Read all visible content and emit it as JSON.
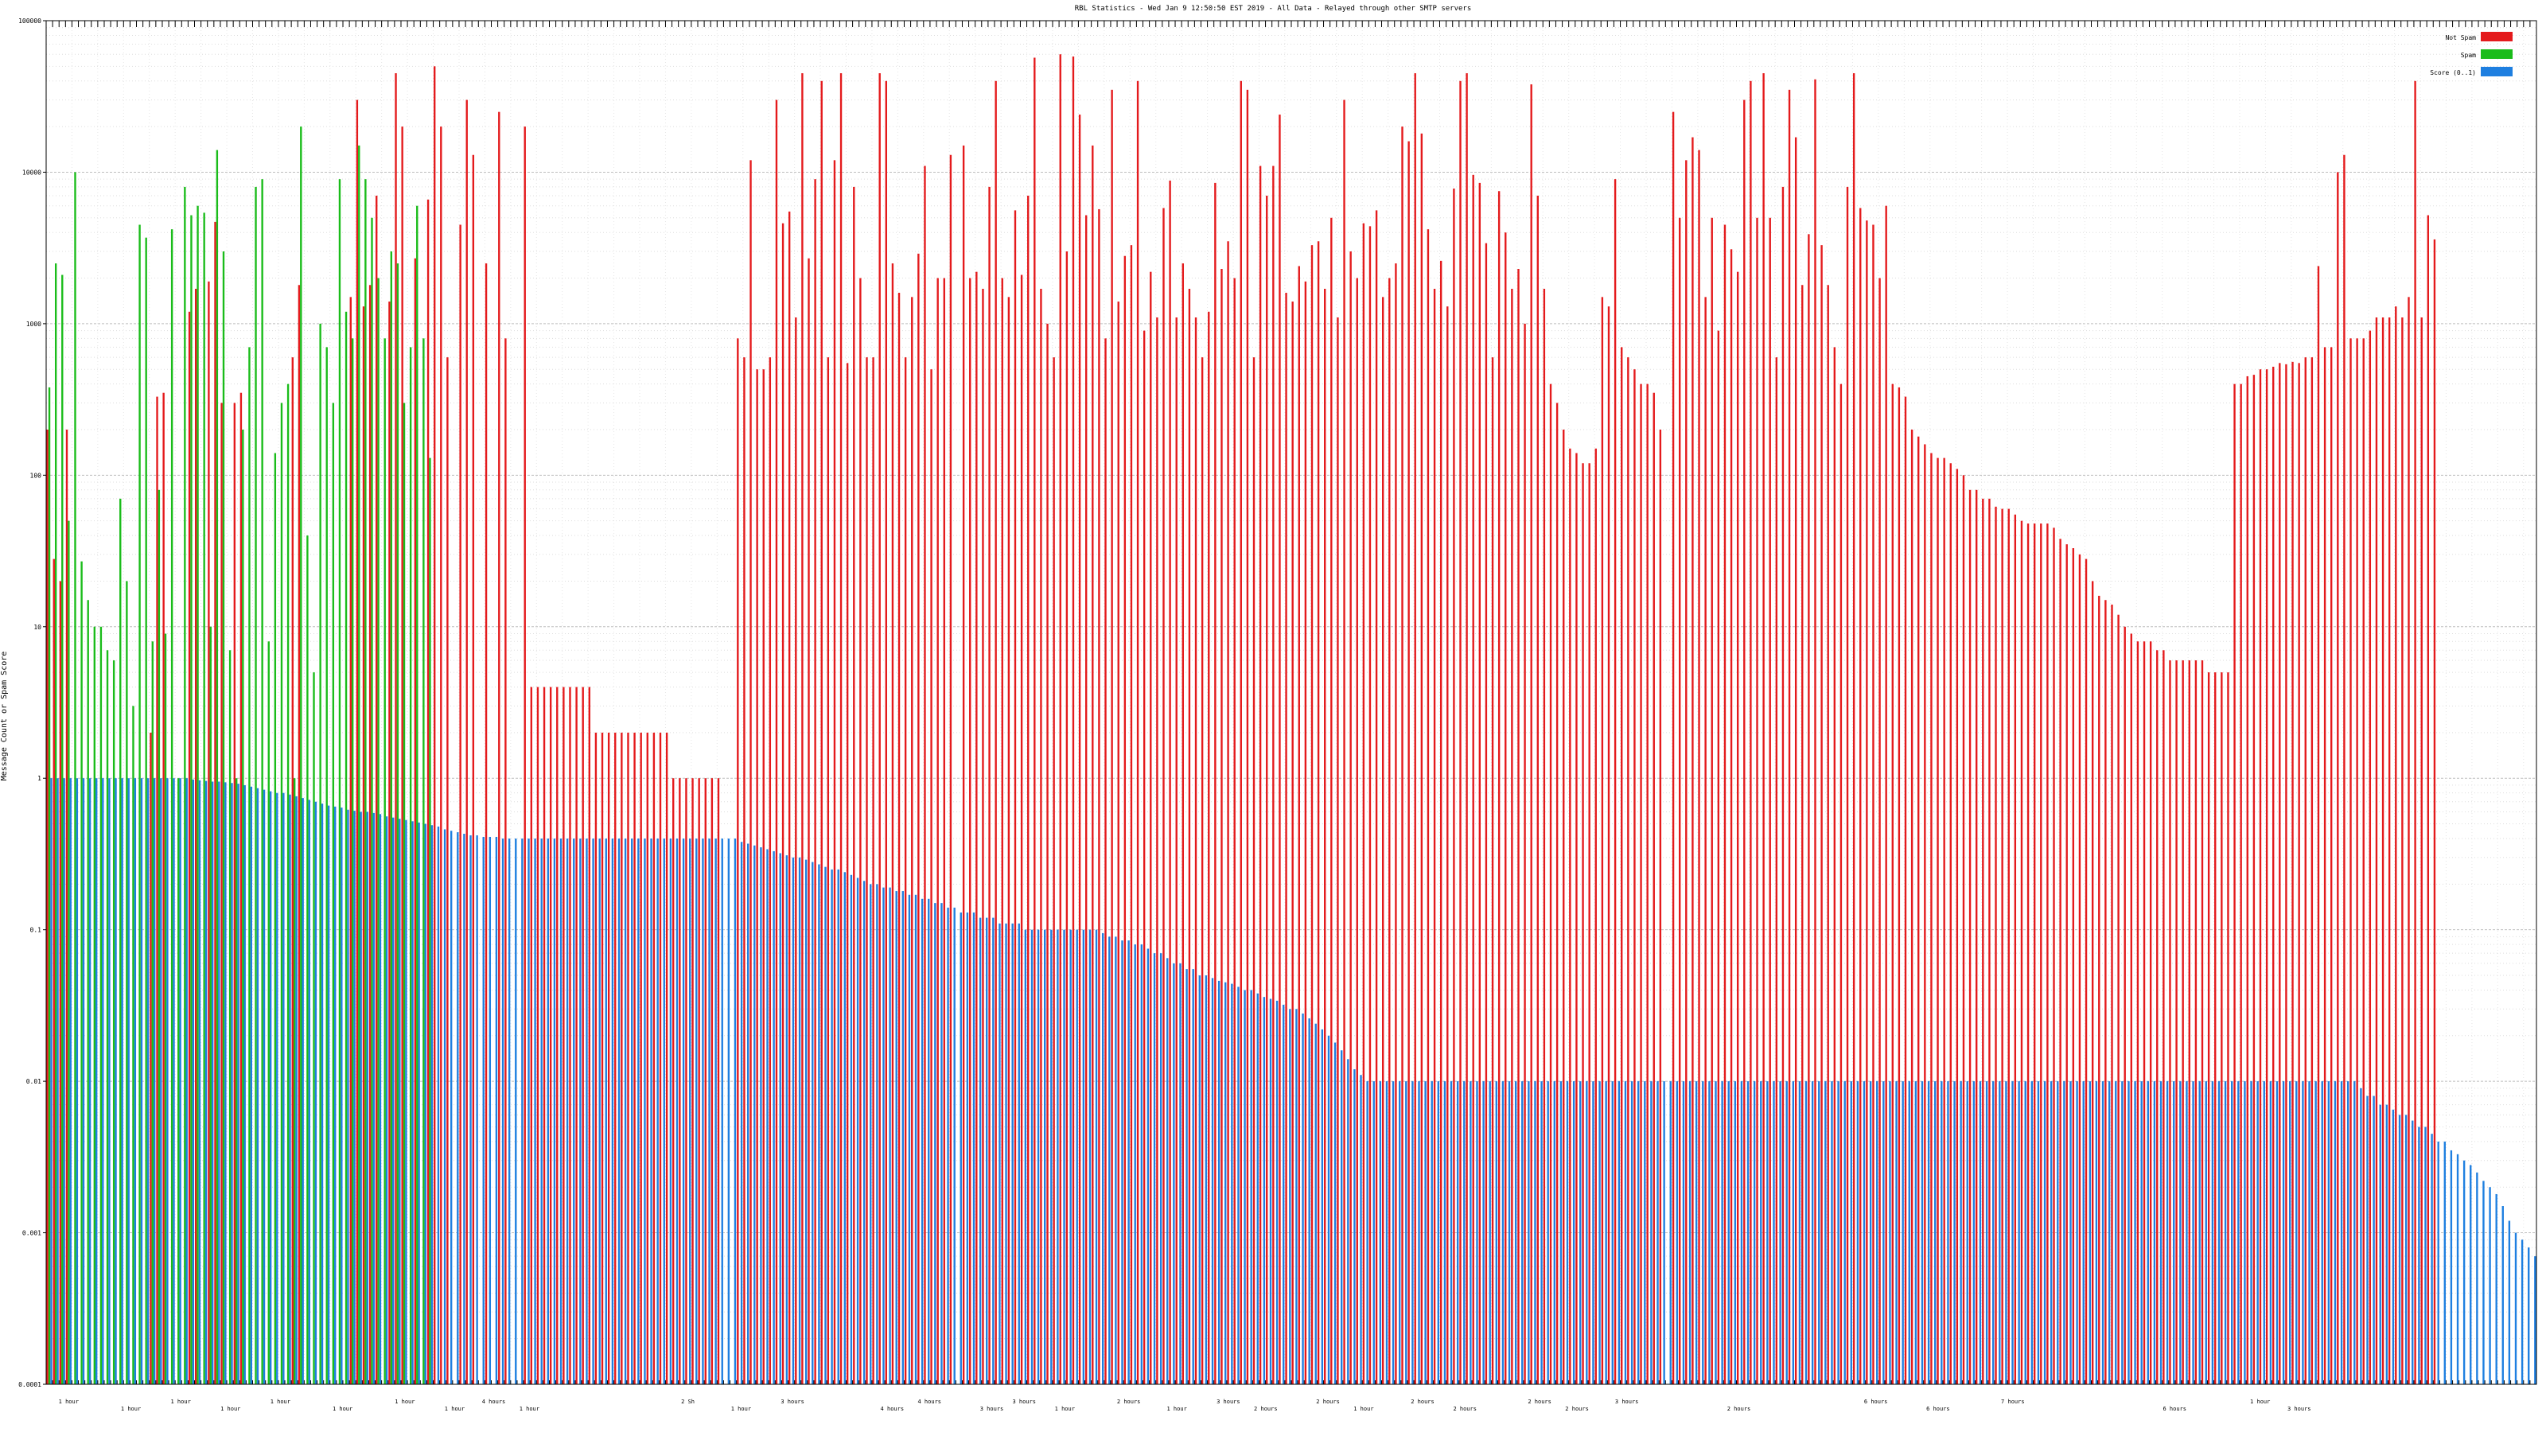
{
  "chart_data": {
    "type": "bar",
    "title": "RBL Statistics - Wed Jan  9 12:50:50 EST 2019 - All Data - Relayed through other SMTP servers",
    "ylabel": "Message Count or Spam Score",
    "scale": "log",
    "ylim": [
      0.0001,
      100000
    ],
    "y_ticks": [
      {
        "value": 0.0001,
        "label": "0.0001"
      },
      {
        "value": 0.001,
        "label": "0.001"
      },
      {
        "value": 0.01,
        "label": "0.01"
      },
      {
        "value": 0.1,
        "label": "0.1"
      },
      {
        "value": 1,
        "label": "1"
      },
      {
        "value": 10,
        "label": "10"
      },
      {
        "value": 100,
        "label": "100"
      },
      {
        "value": 1000,
        "label": "1000"
      },
      {
        "value": 10000,
        "label": "10000"
      },
      {
        "value": 100000,
        "label": "100000"
      }
    ],
    "grid": true,
    "legend_position": "top-right",
    "series": [
      {
        "name": "Not Spam",
        "color": "#e41a1c"
      },
      {
        "name": "Spam",
        "color": "#1abc1a"
      },
      {
        "name": "Score (0..1)",
        "color": "#1e7fe0"
      }
    ],
    "x_groups": [
      {
        "label": "1 hour",
        "frac": 0.005
      },
      {
        "label": "1 hour",
        "frac": 0.03
      },
      {
        "label": "1 hour",
        "frac": 0.05
      },
      {
        "label": "1 hour",
        "frac": 0.07
      },
      {
        "label": "1 hour",
        "frac": 0.09
      },
      {
        "label": "1 hour",
        "frac": 0.115
      },
      {
        "label": "1 hour",
        "frac": 0.14
      },
      {
        "label": "1 hour",
        "frac": 0.16
      },
      {
        "label": "4 hours",
        "frac": 0.175
      },
      {
        "label": "1 hour",
        "frac": 0.19
      },
      {
        "label": "2 Sh",
        "frac": 0.255
      },
      {
        "label": "1 hour",
        "frac": 0.275
      },
      {
        "label": "3 hours",
        "frac": 0.295
      },
      {
        "label": "4 hours",
        "frac": 0.335
      },
      {
        "label": "4 hours",
        "frac": 0.35
      },
      {
        "label": "3 hours",
        "frac": 0.375
      },
      {
        "label": "3 hours",
        "frac": 0.388
      },
      {
        "label": "1 hour",
        "frac": 0.405
      },
      {
        "label": "2 hours",
        "frac": 0.43
      },
      {
        "label": "1 hour",
        "frac": 0.45
      },
      {
        "label": "3 hours",
        "frac": 0.47
      },
      {
        "label": "2 hours",
        "frac": 0.485
      },
      {
        "label": "2 hours",
        "frac": 0.51
      },
      {
        "label": "1 hour",
        "frac": 0.525
      },
      {
        "label": "2 hours",
        "frac": 0.548
      },
      {
        "label": "2 hours",
        "frac": 0.565
      },
      {
        "label": "2 hours",
        "frac": 0.595
      },
      {
        "label": "2 hours",
        "frac": 0.61
      },
      {
        "label": "3 hours",
        "frac": 0.63
      },
      {
        "label": "2 hours",
        "frac": 0.675
      },
      {
        "label": "6 hours",
        "frac": 0.73
      },
      {
        "label": "6 hours",
        "frac": 0.755
      },
      {
        "label": "7 hours",
        "frac": 0.785
      },
      {
        "label": "6 hours",
        "frac": 0.85
      },
      {
        "label": "1 hour",
        "frac": 0.885
      },
      {
        "label": "3 hours",
        "frac": 0.9
      }
    ],
    "not_spam": [
      200,
      28,
      20,
      200,
      0,
      0,
      0,
      0,
      0,
      0,
      0,
      0,
      0,
      0,
      0,
      0,
      2,
      330,
      350,
      0,
      0,
      0,
      1200,
      1700,
      0,
      1900,
      4700,
      300,
      0,
      300,
      350,
      0,
      0,
      0,
      0,
      0,
      0,
      0,
      600,
      1800,
      0,
      0,
      0,
      0,
      0,
      0,
      0,
      1500,
      30000,
      1300,
      1800,
      7000,
      0,
      1400,
      45000,
      20000,
      0,
      2700,
      0,
      6600,
      50000,
      20000,
      600,
      0,
      4500,
      30000,
      13000,
      0,
      2500,
      0,
      25000,
      800,
      0,
      0,
      20000,
      4,
      4,
      4,
      4,
      4,
      4,
      4,
      4,
      4,
      4,
      2,
      2,
      2,
      2,
      2,
      2,
      2,
      2,
      2,
      2,
      2,
      2,
      1,
      1,
      1,
      1,
      1,
      1,
      1,
      1,
      0,
      0,
      800,
      600,
      12000,
      500,
      500,
      600,
      30000,
      4600,
      5500,
      1100,
      45000,
      2700,
      9000,
      40000,
      600,
      12000,
      45000,
      550,
      8000,
      2000,
      600,
      600,
      45000,
      40000,
      2500,
      1600,
      600,
      1500,
      2900,
      11000,
      500,
      2000,
      2000,
      13000,
      0,
      15000,
      2000,
      2200,
      1700,
      8000,
      40000,
      2000,
      1500,
      5600,
      2100,
      7000,
      57000,
      1700,
      1000,
      600,
      60000,
      3000,
      58000,
      24000,
      5200,
      15000,
      5700,
      800,
      35000,
      1400,
      2800,
      3300,
      40000,
      900,
      2200,
      1100,
      5800,
      8800,
      1100,
      2500,
      1700,
      1100,
      600,
      1200,
      8500,
      2300,
      3500,
      2000,
      40000,
      35000,
      600,
      11000,
      7000,
      11000,
      24000,
      1600,
      1400,
      2400,
      1900,
      3300,
      3500,
      1700,
      5000,
      1100,
      30000,
      3000,
      2000,
      4600,
      4400,
      5600,
      1500,
      2000,
      2500,
      20000,
      16000,
      45000,
      18000,
      4200,
      1700,
      2600,
      1300,
      7800,
      40000,
      45000,
      9600,
      8500,
      3400,
      600,
      7500,
      4000,
      1700,
      2300,
      1000,
      38000,
      7000,
      1700,
      400,
      300,
      200,
      150,
      140,
      120,
      120,
      150,
      1500,
      1300,
      9000,
      700,
      600,
      500,
      400,
      400,
      350,
      200,
      0,
      25000,
      5000,
      12000,
      17000,
      14000,
      1500,
      5000,
      900,
      4500,
      3100,
      2200,
      30000,
      40000,
      5000,
      45000,
      5000,
      600,
      8000,
      35000,
      17000,
      1800,
      3900,
      41000,
      3300,
      1800,
      700,
      400,
      8000,
      45000,
      5800,
      4800,
      4500,
      2000,
      6000,
      400,
      380,
      330,
      200,
      180,
      160,
      140,
      130,
      130,
      120,
      110,
      100,
      80,
      80,
      70,
      70,
      62,
      60,
      60,
      55,
      50,
      48,
      48,
      48,
      48,
      45,
      38,
      35,
      33,
      30,
      28,
      20,
      16,
      15,
      14,
      12,
      10,
      9,
      8,
      8,
      8,
      7,
      7,
      6,
      6,
      6,
      6,
      6,
      6,
      5,
      5,
      5,
      5,
      400,
      400,
      450,
      460,
      500,
      500,
      520,
      550,
      540,
      560,
      550,
      600,
      600,
      2400,
      700,
      700,
      10000,
      13000,
      800,
      800,
      800,
      900,
      1100,
      1100,
      1100,
      1300,
      1100,
      1500,
      40000,
      1100,
      5200,
      3600
    ],
    "spam": [
      380,
      2500,
      2100,
      50,
      10000,
      27,
      15,
      10,
      10,
      7,
      6,
      70,
      20,
      3,
      4500,
      3700,
      8,
      80,
      9,
      4200,
      1,
      8000,
      5200,
      6000,
      5400,
      10,
      14000,
      3000,
      7,
      1,
      200,
      700,
      8000,
      9000,
      8,
      140,
      300,
      400,
      1,
      20000,
      40,
      5,
      1000,
      700,
      300,
      9000,
      1200,
      800,
      15000,
      9000,
      5000,
      2000,
      800,
      3000,
      2500,
      300,
      700,
      6000,
      800,
      130,
      0,
      0,
      0,
      0,
      0,
      0,
      0,
      0,
      0,
      0,
      0,
      0,
      0,
      0,
      0,
      0,
      0,
      0,
      0,
      0,
      0,
      0,
      0,
      0,
      0,
      0,
      0,
      0,
      0,
      0,
      0,
      0,
      0,
      0,
      0,
      0,
      0,
      0,
      0,
      0,
      0,
      0,
      0,
      0,
      0,
      0,
      0,
      0,
      0,
      0,
      0,
      0,
      0,
      0,
      0,
      0,
      0,
      0,
      0,
      0,
      0,
      0,
      0,
      0,
      0,
      0,
      0,
      0,
      0,
      0,
      0,
      0,
      0,
      0,
      0,
      0,
      0,
      0,
      0,
      0,
      0,
      0,
      0,
      0,
      0,
      0,
      0,
      0,
      0,
      0,
      0,
      0,
      0,
      0,
      0,
      0,
      0,
      0,
      0,
      0,
      0,
      0,
      0,
      0,
      0,
      0,
      0,
      0,
      0,
      0,
      0,
      0,
      0,
      0,
      0,
      0,
      0,
      0,
      0,
      0,
      0,
      0,
      0,
      0,
      0,
      0,
      0,
      0,
      0,
      0,
      0,
      0,
      0,
      0,
      0,
      0,
      0,
      0,
      0,
      0,
      0,
      0,
      0,
      0,
      0,
      0,
      0,
      0,
      0,
      0,
      0,
      0,
      0,
      0,
      0,
      0,
      0,
      0,
      0,
      0,
      0,
      0,
      0,
      0,
      0,
      0,
      0,
      0,
      0,
      0,
      0,
      0,
      0,
      0,
      0,
      0,
      0,
      0,
      0,
      0,
      0,
      0,
      0,
      0,
      0,
      0,
      0,
      0,
      0,
      0,
      0,
      0,
      0,
      0,
      0,
      0,
      0,
      0,
      0,
      0,
      0,
      0,
      0,
      0,
      0,
      0,
      0,
      0,
      0,
      0,
      0,
      0,
      0,
      0,
      0,
      0,
      0,
      0,
      0,
      0,
      0,
      0,
      0,
      0,
      0,
      0,
      0,
      0,
      0,
      0,
      0,
      0,
      0,
      0,
      0,
      0,
      0,
      0,
      0,
      0,
      0,
      0,
      0,
      0,
      0,
      0,
      0,
      0,
      0,
      0,
      0,
      0,
      0,
      0,
      0,
      0,
      0,
      0,
      0,
      0,
      0,
      0,
      0,
      0,
      0,
      0,
      0,
      0,
      0,
      0,
      0,
      0,
      0,
      0,
      0,
      0,
      0,
      0,
      0,
      0,
      0,
      0,
      0,
      0,
      0,
      0,
      0,
      0,
      0,
      0,
      0,
      0,
      0,
      0,
      0,
      0,
      0,
      0,
      0,
      0,
      0,
      0,
      0,
      0,
      0,
      0,
      0,
      0,
      0,
      0,
      0,
      0,
      0,
      0,
      0,
      0,
      0,
      0,
      0,
      0,
      0,
      0,
      0,
      0,
      0,
      0,
      0,
      0,
      0,
      0,
      0,
      0,
      0,
      0,
      0,
      0,
      0,
      0,
      0,
      0,
      0,
      0,
      0,
      0,
      0,
      0,
      0,
      0,
      0,
      0,
      0,
      0,
      0,
      0,
      0,
      0,
      0,
      0,
      0,
      0,
      0,
      0,
      0,
      0,
      0,
      0,
      0,
      0,
      0,
      0,
      0,
      0,
      0,
      0,
      0,
      0,
      0,
      0,
      0,
      0,
      0,
      0,
      0,
      0,
      0
    ],
    "score": [
      1,
      1,
      1,
      1,
      1,
      1,
      1,
      1,
      1,
      1,
      1,
      1,
      1,
      1,
      1,
      1,
      1,
      1,
      1,
      1,
      1,
      1,
      0.98,
      0.97,
      0.96,
      0.95,
      0.95,
      0.94,
      0.93,
      0.92,
      0.9,
      0.88,
      0.86,
      0.84,
      0.82,
      0.8,
      0.8,
      0.78,
      0.76,
      0.74,
      0.72,
      0.7,
      0.68,
      0.66,
      0.65,
      0.64,
      0.62,
      0.61,
      0.6,
      0.6,
      0.59,
      0.58,
      0.56,
      0.55,
      0.54,
      0.53,
      0.52,
      0.51,
      0.5,
      0.49,
      0.48,
      0.46,
      0.45,
      0.44,
      0.43,
      0.42,
      0.42,
      0.41,
      0.41,
      0.41,
      0.4,
      0.4,
      0.4,
      0.4,
      0.4,
      0.4,
      0.4,
      0.4,
      0.4,
      0.4,
      0.4,
      0.4,
      0.4,
      0.4,
      0.4,
      0.4,
      0.4,
      0.4,
      0.4,
      0.4,
      0.4,
      0.4,
      0.4,
      0.4,
      0.4,
      0.4,
      0.4,
      0.4,
      0.4,
      0.4,
      0.4,
      0.4,
      0.4,
      0.4,
      0.4,
      0.4,
      0.4,
      0.38,
      0.37,
      0.36,
      0.35,
      0.34,
      0.33,
      0.32,
      0.31,
      0.3,
      0.3,
      0.29,
      0.28,
      0.27,
      0.26,
      0.25,
      0.25,
      0.24,
      0.23,
      0.22,
      0.21,
      0.2,
      0.2,
      0.19,
      0.19,
      0.18,
      0.18,
      0.17,
      0.17,
      0.16,
      0.16,
      0.15,
      0.15,
      0.14,
      0.14,
      0.13,
      0.13,
      0.13,
      0.12,
      0.12,
      0.12,
      0.11,
      0.11,
      0.11,
      0.11,
      0.1,
      0.1,
      0.1,
      0.1,
      0.1,
      0.1,
      0.1,
      0.1,
      0.1,
      0.1,
      0.1,
      0.1,
      0.095,
      0.09,
      0.09,
      0.085,
      0.085,
      0.08,
      0.08,
      0.075,
      0.07,
      0.07,
      0.065,
      0.06,
      0.06,
      0.055,
      0.055,
      0.05,
      0.05,
      0.048,
      0.046,
      0.045,
      0.044,
      0.042,
      0.04,
      0.04,
      0.038,
      0.036,
      0.035,
      0.034,
      0.032,
      0.03,
      0.03,
      0.028,
      0.026,
      0.024,
      0.022,
      0.02,
      0.018,
      0.016,
      0.014,
      0.012,
      0.011,
      0.01,
      0.01,
      0.01,
      0.01,
      0.01,
      0.01,
      0.01,
      0.01,
      0.01,
      0.01,
      0.01,
      0.01,
      0.01,
      0.01,
      0.01,
      0.01,
      0.01,
      0.01,
      0.01,
      0.01,
      0.01,
      0.01,
      0.01,
      0.01,
      0.01,
      0.01,
      0.01,
      0.01,
      0.01,
      0.01,
      0.01,
      0.01,
      0.01,
      0.01,
      0.01,
      0.01,
      0.01,
      0.01,
      0.01,
      0.01,
      0.01,
      0.01,
      0.01,
      0.01,
      0.01,
      0.01,
      0.01,
      0.01,
      0.01,
      0.01,
      0.01,
      0.01,
      0.01,
      0.01,
      0.01,
      0.01,
      0.01,
      0.01,
      0.01,
      0.01,
      0.01,
      0.01,
      0.01,
      0.01,
      0.01,
      0.01,
      0.01,
      0.01,
      0.01,
      0.01,
      0.01,
      0.01,
      0.01,
      0.01,
      0.01,
      0.01,
      0.01,
      0.01,
      0.01,
      0.01,
      0.01,
      0.01,
      0.01,
      0.01,
      0.01,
      0.01,
      0.01,
      0.01,
      0.01,
      0.01,
      0.01,
      0.01,
      0.01,
      0.01,
      0.01,
      0.01,
      0.01,
      0.01,
      0.01,
      0.01,
      0.01,
      0.01,
      0.01,
      0.01,
      0.01,
      0.01,
      0.01,
      0.01,
      0.01,
      0.01,
      0.01,
      0.01,
      0.01,
      0.01,
      0.01,
      0.01,
      0.01,
      0.01,
      0.01,
      0.01,
      0.01,
      0.01,
      0.01,
      0.01,
      0.01,
      0.01,
      0.01,
      0.01,
      0.01,
      0.01,
      0.01,
      0.01,
      0.01,
      0.01,
      0.01,
      0.01,
      0.01,
      0.01,
      0.01,
      0.01,
      0.01,
      0.01,
      0.01,
      0.01,
      0.01,
      0.01,
      0.01,
      0.01,
      0.01,
      0.01,
      0.01,
      0.01,
      0.01,
      0.01,
      0.009,
      0.008,
      0.008,
      0.007,
      0.007,
      0.0065,
      0.006,
      0.006,
      0.0055,
      0.005,
      0.005,
      0.0045,
      0.004,
      0.004,
      0.0035,
      0.0033,
      0.003,
      0.0028,
      0.0025,
      0.0022,
      0.002,
      0.0018,
      0.0015,
      0.0012,
      0.001,
      0.0009,
      0.0008,
      0.0007
    ]
  }
}
